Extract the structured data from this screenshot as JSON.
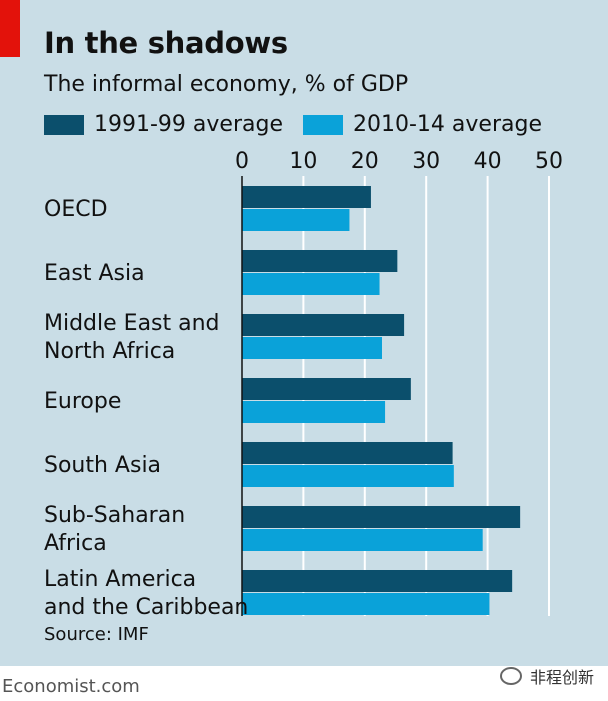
{
  "chart_data": {
    "type": "bar",
    "orientation": "horizontal",
    "title": "In the shadows",
    "subtitle": "The informal economy, % of GDP",
    "categories": [
      [
        "OECD"
      ],
      [
        "East Asia"
      ],
      [
        "Middle East and",
        "North Africa"
      ],
      [
        "Europe"
      ],
      [
        "South Asia"
      ],
      [
        "Sub-Saharan",
        "Africa"
      ],
      [
        "Latin America",
        "and the Caribbean"
      ]
    ],
    "series": [
      {
        "name": "1991-99 average",
        "color": "#0b4f6c",
        "values": [
          21,
          25.3,
          26.4,
          27.5,
          34.3,
          45.3,
          44
        ]
      },
      {
        "name": "2010-14 average",
        "color": "#0aa2d9",
        "values": [
          17.5,
          22.4,
          22.8,
          23.3,
          34.5,
          39.2,
          40.3
        ]
      }
    ],
    "xlim": [
      0,
      50
    ],
    "xticks": [
      "0",
      "10",
      "20",
      "30",
      "40",
      "50"
    ],
    "grid": true,
    "legend": "top-left",
    "source": "Source: IMF"
  },
  "footer": {
    "brand": "Economist.com",
    "watermark": "非程创新"
  }
}
